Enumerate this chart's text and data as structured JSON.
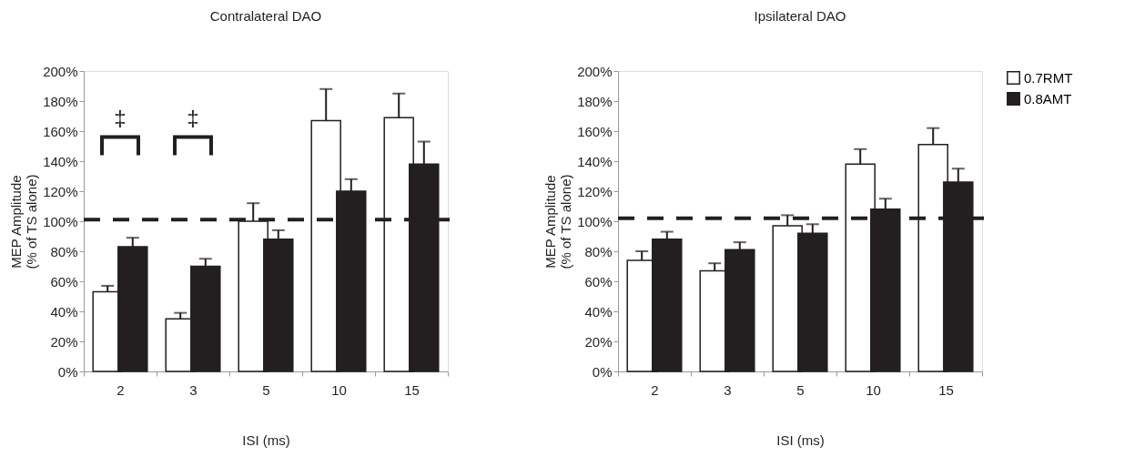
{
  "chart_data": [
    {
      "type": "bar",
      "title": "Contralateral DAO",
      "xlabel": "ISI (ms)",
      "ylabel": "MEP Amplitude\n(% of TS alone)",
      "categories": [
        "2",
        "3",
        "5",
        "10",
        "15"
      ],
      "series": [
        {
          "name": "0.7RMT",
          "color": "#ffffff",
          "values": [
            53,
            35,
            100,
            167,
            169
          ],
          "errors": [
            [
              53,
              57
            ],
            [
              35,
              39
            ],
            [
              100,
              112
            ],
            [
              167,
              188
            ],
            [
              169,
              185
            ]
          ]
        },
        {
          "name": "0.8AMT",
          "color": "#231f20",
          "values": [
            83,
            70,
            88,
            120,
            138
          ],
          "errors": [
            [
              83,
              89
            ],
            [
              70,
              75
            ],
            [
              88,
              94
            ],
            [
              120,
              128
            ],
            [
              138,
              153
            ]
          ]
        }
      ],
      "ylim": [
        0,
        200
      ],
      "yticks": [
        {
          "value": 0,
          "label": "0%"
        },
        {
          "value": 20,
          "label": "20%"
        },
        {
          "value": 40,
          "label": "40%"
        },
        {
          "value": 60,
          "label": "60%"
        },
        {
          "value": 80,
          "label": "80%"
        },
        {
          "value": 100,
          "label": "100%"
        },
        {
          "value": 120,
          "label": "120%"
        },
        {
          "value": 140,
          "label": "140%"
        },
        {
          "value": 160,
          "label": "160%"
        },
        {
          "value": 180,
          "label": "180%"
        },
        {
          "value": 200,
          "label": "200%"
        }
      ],
      "ref_lines": [
        {
          "axis": "y",
          "value": 101,
          "color": "#231f20",
          "line_style": "dashed"
        }
      ],
      "annotations": [
        "‡",
        "‡"
      ],
      "grid": false,
      "legend": "right"
    },
    {
      "type": "bar",
      "title": "Ipsilateral DAO",
      "xlabel": "ISI (ms)",
      "ylabel": "MEP Amplitude\n(% of TS alone)",
      "categories": [
        "2",
        "3",
        "5",
        "10",
        "15"
      ],
      "series": [
        {
          "name": "0.7RMT",
          "color": "#ffffff",
          "values": [
            74,
            67,
            97,
            138,
            151
          ],
          "errors": [
            [
              74,
              80
            ],
            [
              67,
              72
            ],
            [
              97,
              104
            ],
            [
              138,
              148
            ],
            [
              151,
              162
            ]
          ]
        },
        {
          "name": "0.8AMT",
          "color": "#231f20",
          "values": [
            88,
            81,
            92,
            108,
            126
          ],
          "errors": [
            [
              88,
              93
            ],
            [
              81,
              86
            ],
            [
              92,
              98
            ],
            [
              108,
              115
            ],
            [
              126,
              135
            ]
          ]
        }
      ],
      "ylim": [
        0,
        200
      ],
      "yticks": [
        {
          "value": 0,
          "label": "0%"
        },
        {
          "value": 20,
          "label": "20%"
        },
        {
          "value": 40,
          "label": "40%"
        },
        {
          "value": 60,
          "label": "60%"
        },
        {
          "value": 80,
          "label": "80%"
        },
        {
          "value": 100,
          "label": "100%"
        },
        {
          "value": 120,
          "label": "120%"
        },
        {
          "value": 140,
          "label": "140%"
        },
        {
          "value": 160,
          "label": "160%"
        },
        {
          "value": 180,
          "label": "180%"
        },
        {
          "value": 200,
          "label": "200%"
        }
      ],
      "ref_lines": [
        {
          "axis": "y",
          "value": 102,
          "color": "#231f20",
          "line_style": "dashed"
        }
      ],
      "grid": false,
      "legend": "right"
    }
  ]
}
